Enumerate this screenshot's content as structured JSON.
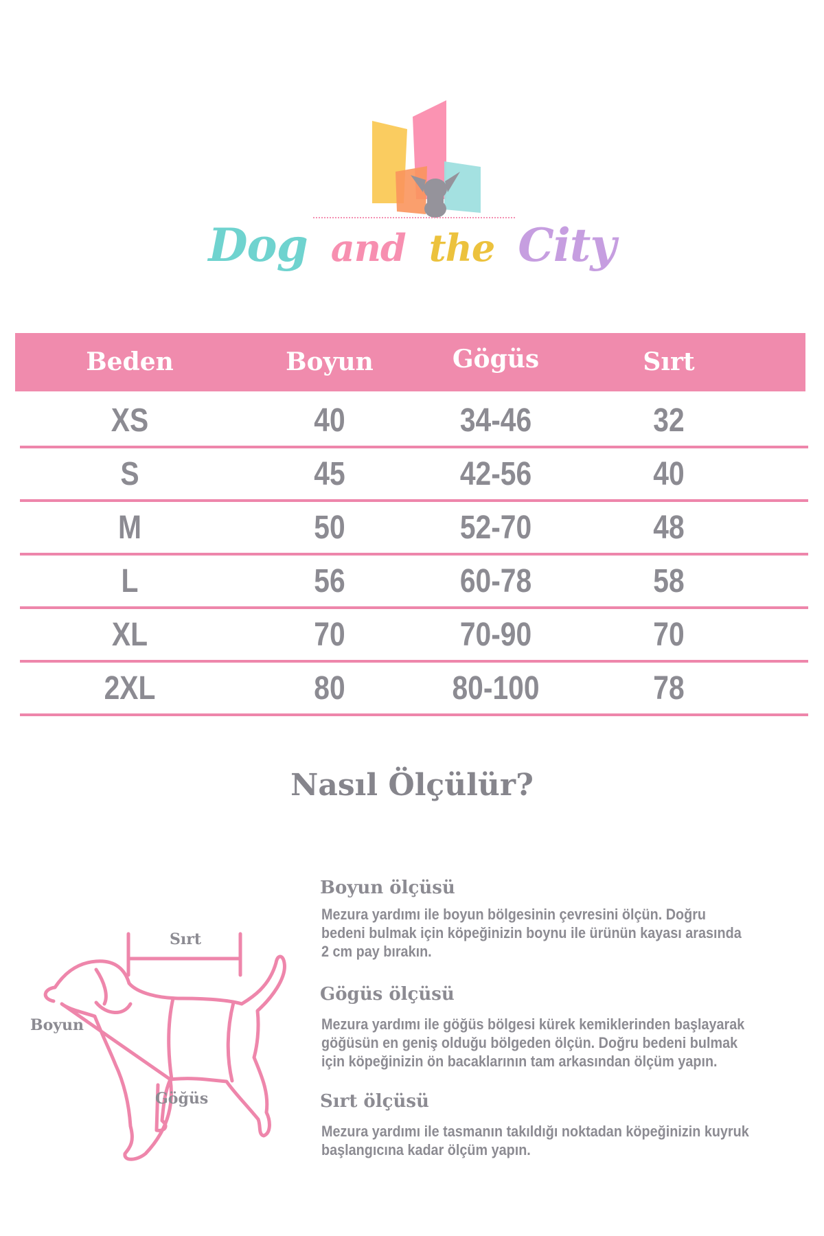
{
  "logo": {
    "words": [
      "Dog",
      "and",
      "the",
      "City"
    ],
    "colors": [
      "#6fd3cf",
      "#f78fb0",
      "#ecc23d",
      "#c69ee0"
    ]
  },
  "table": {
    "headers": [
      "Beden",
      "Boyun",
      "Gögüs",
      "Sırt"
    ],
    "rows": [
      [
        "XS",
        "40",
        "34-46",
        "32"
      ],
      [
        "S",
        "45",
        "42-56",
        "40"
      ],
      [
        "M",
        "50",
        "52-70",
        "48"
      ],
      [
        "L",
        "56",
        "60-78",
        "58"
      ],
      [
        "XL",
        "70",
        "70-90",
        "70"
      ],
      [
        "2XL",
        "80",
        "80-100",
        "78"
      ]
    ],
    "header_color": "#f08bad",
    "line_color": "#ee86ab"
  },
  "howto": {
    "title": "Nasıl Ölçülür?",
    "diagram_labels": {
      "sirt": "Sırt",
      "boyun": "Boyun",
      "gogus": "Göğüs"
    },
    "sections": [
      {
        "heading": "Boyun ölçüsü",
        "lines": [
          "Mezura yardımı ile boyun bölgesinin çevresini ölçün. Doğru",
          "bedeni bulmak için köpeğinizin boynu ile ürünün kayası arasında",
          "2 cm pay bırakın."
        ]
      },
      {
        "heading": "Gögüs ölçüsü",
        "lines": [
          "Mezura yardımı ile göğüs bölgesi kürek kemiklerinden başlayarak",
          "göğüsün en geniş olduğu bölgeden ölçün. Doğru bedeni bulmak",
          "için köpeğinizin ön bacaklarının tam arkasından ölçüm yapın."
        ]
      },
      {
        "heading": "Sırt ölçüsü",
        "lines": [
          "Mezura yardımı ile tasmanın takıldığı noktadan köpeğinizin kuyruk",
          "başlangıcına kadar ölçüm yapın."
        ]
      }
    ]
  }
}
